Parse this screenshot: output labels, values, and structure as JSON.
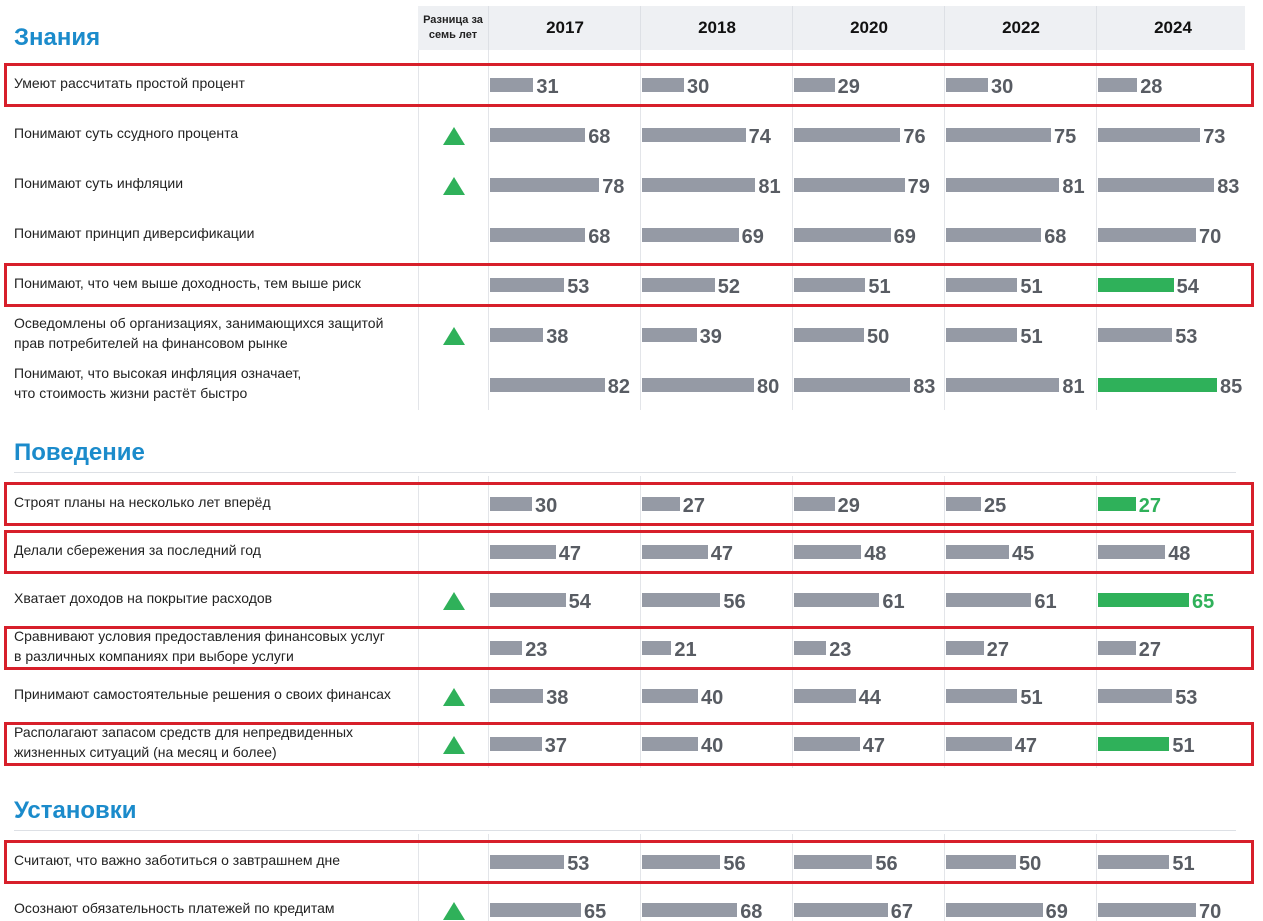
{
  "header": {
    "diff_label": [
      "Разница за",
      "семь лет"
    ],
    "years": [
      "2017",
      "2018",
      "2020",
      "2022",
      "2024"
    ]
  },
  "colors": {
    "bar": "#959aa5",
    "accent": "#2fb15a",
    "highlight": "#d71f2a",
    "section": "#1b8bcb",
    "trend": "#2fb15a"
  },
  "sections": [
    {
      "title": "Знания",
      "rows": [
        {
          "label": [
            "Умеют рассчитать простой процент"
          ],
          "values": [
            31,
            30,
            29,
            30,
            28
          ],
          "highlighted": true
        },
        {
          "label": [
            "Понимают суть ссудного процента"
          ],
          "values": [
            68,
            74,
            76,
            75,
            73
          ],
          "trend_up": true
        },
        {
          "label": [
            "Понимают суть инфляции"
          ],
          "values": [
            78,
            81,
            79,
            81,
            83
          ],
          "trend_up": true
        },
        {
          "label": [
            "Понимают принцип диверсификации"
          ],
          "values": [
            68,
            69,
            69,
            68,
            70
          ]
        },
        {
          "label": [
            "Понимают, что чем выше доходность, тем выше риск"
          ],
          "values": [
            53,
            52,
            51,
            51,
            54
          ],
          "highlighted": true,
          "accent_bar": true
        },
        {
          "label": [
            "Осведомлены об организациях, занимающихся защитой",
            "прав потребителей на финансовом рынке"
          ],
          "values": [
            38,
            39,
            50,
            51,
            53
          ],
          "trend_up": true
        },
        {
          "label": [
            "Понимают, что высокая инфляция означает,",
            "что стоимость жизни растёт быстро"
          ],
          "values": [
            82,
            80,
            83,
            81,
            85
          ],
          "accent_bar": true
        }
      ]
    },
    {
      "title": "Поведение",
      "rows": [
        {
          "label": [
            "Строят планы на несколько лет вперёд"
          ],
          "values": [
            30,
            27,
            29,
            25,
            27
          ],
          "highlighted": true,
          "accent_bar": true,
          "accent_label": true
        },
        {
          "label": [
            "Делали сбережения за последний год"
          ],
          "values": [
            47,
            47,
            48,
            45,
            48
          ],
          "highlighted": true
        },
        {
          "label": [
            "Хватает доходов на покрытие расходов"
          ],
          "values": [
            54,
            56,
            61,
            61,
            65
          ],
          "trend_up": true,
          "accent_bar": true,
          "accent_label": true
        },
        {
          "label": [
            "Сравнивают условия предоставления финансовых услуг",
            "в различных компаниях при выборе услуги"
          ],
          "values": [
            23,
            21,
            23,
            27,
            27
          ],
          "highlighted": true
        },
        {
          "label": [
            "Принимают самостоятельные решения о своих финансах"
          ],
          "values": [
            38,
            40,
            44,
            51,
            53
          ],
          "trend_up": true
        },
        {
          "label": [
            "Располагают запасом средств для непредвиденных",
            "жизненных ситуаций (на месяц и более)"
          ],
          "values": [
            37,
            40,
            47,
            47,
            51
          ],
          "trend_up": true,
          "highlighted": true,
          "accent_bar": true
        }
      ]
    },
    {
      "title": "Установки",
      "rows": [
        {
          "label": [
            "Считают, что важно заботиться о завтрашнем дне"
          ],
          "values": [
            53,
            56,
            56,
            50,
            51
          ],
          "highlighted": true
        },
        {
          "label": [
            "Осознают обязательность платежей по кредитам"
          ],
          "values": [
            65,
            68,
            67,
            69,
            70
          ],
          "trend_up": true
        }
      ]
    }
  ]
}
